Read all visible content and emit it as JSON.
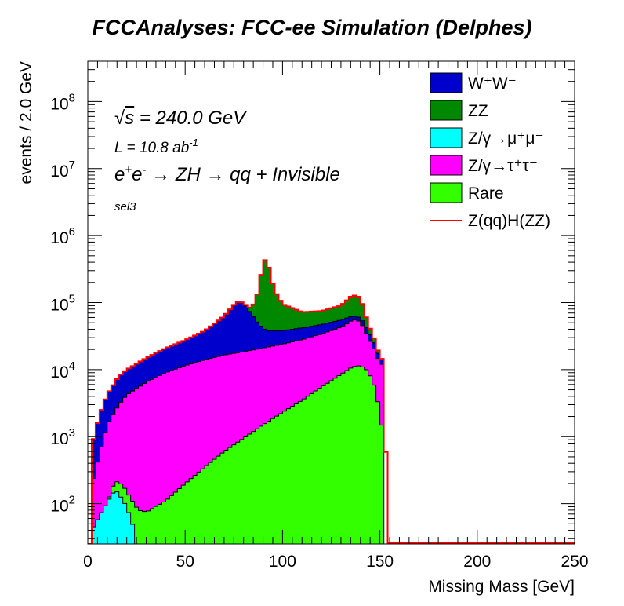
{
  "chart_data": {
    "type": "area",
    "title": "FCCAnalyses: FCC-ee Simulation (Delphes)",
    "xlabel": "Missing Mass [GeV]",
    "ylabel": "events / 2.0 GeV",
    "xlim": [
      0,
      250
    ],
    "ylim": [
      25,
      400000000
    ],
    "yscale": "log",
    "x_ticks": [
      "0",
      "50",
      "100",
      "150",
      "200",
      "250"
    ],
    "y_ticks": [
      {
        "base": "10",
        "exp": "2",
        "value": 100
      },
      {
        "base": "10",
        "exp": "3",
        "value": 1000
      },
      {
        "base": "10",
        "exp": "4",
        "value": 10000
      },
      {
        "base": "10",
        "exp": "5",
        "value": 100000
      },
      {
        "base": "10",
        "exp": "6",
        "value": 1000000
      },
      {
        "base": "10",
        "exp": "7",
        "value": 10000000
      },
      {
        "base": "10",
        "exp": "8",
        "value": 100000000
      }
    ],
    "annotations": {
      "sqrt_s": "240.0 GeV",
      "lumi_prefix": "L = 10.8 ab",
      "lumi_exp": "-1",
      "process": "qq + Invisible",
      "selection": "sel3"
    },
    "stack_order_bottom_to_top": [
      "Z/γ→μ⁺μ⁻",
      "Rare",
      "Z/γ→τ⁺τ⁻",
      "W⁺W⁻",
      "ZZ"
    ],
    "series": [
      {
        "name": "W⁺W⁻",
        "color": "#0000cc",
        "kind": "stack",
        "cumulative_top": [
          [
            2,
            700
          ],
          [
            6,
            2100
          ],
          [
            10,
            4300
          ],
          [
            16,
            8000
          ],
          [
            20,
            10000
          ],
          [
            30,
            15000
          ],
          [
            40,
            21000
          ],
          [
            50,
            27500
          ],
          [
            60,
            38000
          ],
          [
            70,
            63000
          ],
          [
            76,
            100000
          ],
          [
            78,
            105000
          ],
          [
            80,
            97000
          ],
          [
            84,
            67000
          ],
          [
            88,
            47000
          ],
          [
            92,
            38000
          ],
          [
            100,
            38000
          ],
          [
            110,
            42000
          ],
          [
            120,
            47000
          ],
          [
            130,
            55000
          ],
          [
            136,
            63000
          ],
          [
            140,
            60000
          ],
          [
            144,
            38000
          ],
          [
            148,
            22000
          ],
          [
            150,
            14000
          ],
          [
            152,
            14000
          ],
          [
            154,
            0
          ]
        ]
      },
      {
        "name": "ZZ",
        "color": "#008800",
        "kind": "stack",
        "cumulative_top": [
          [
            2,
            700
          ],
          [
            6,
            2100
          ],
          [
            10,
            4300
          ],
          [
            16,
            8000
          ],
          [
            20,
            10000
          ],
          [
            30,
            15000
          ],
          [
            40,
            21000
          ],
          [
            50,
            27500
          ],
          [
            60,
            38000
          ],
          [
            70,
            63000
          ],
          [
            76,
            100000
          ],
          [
            78,
            105000
          ],
          [
            80,
            97000
          ],
          [
            84,
            80000
          ],
          [
            86,
            110000
          ],
          [
            88,
            160000
          ],
          [
            90,
            420000
          ],
          [
            92,
            440000
          ],
          [
            94,
            250000
          ],
          [
            96,
            150000
          ],
          [
            100,
            95000
          ],
          [
            110,
            72000
          ],
          [
            120,
            75000
          ],
          [
            130,
            90000
          ],
          [
            136,
            130000
          ],
          [
            140,
            120000
          ],
          [
            144,
            48000
          ],
          [
            148,
            25000
          ],
          [
            150,
            15000
          ],
          [
            152,
            14000
          ],
          [
            154,
            0
          ]
        ]
      },
      {
        "name": "Z/γ→μ⁺μ⁻",
        "color": "#00ffff",
        "kind": "stack",
        "cumulative_top": [
          [
            2,
            40
          ],
          [
            6,
            65
          ],
          [
            10,
            105
          ],
          [
            14,
            160
          ],
          [
            16,
            140
          ],
          [
            20,
            90
          ],
          [
            24,
            40
          ],
          [
            26,
            0
          ]
        ]
      },
      {
        "name": "Z/γ→τ⁺τ⁻",
        "color": "#ff00ff",
        "kind": "stack",
        "cumulative_top": [
          [
            2,
            180
          ],
          [
            6,
            550
          ],
          [
            10,
            1500
          ],
          [
            16,
            3000
          ],
          [
            20,
            4200
          ],
          [
            30,
            6500
          ],
          [
            40,
            9000
          ],
          [
            50,
            11500
          ],
          [
            60,
            14000
          ],
          [
            70,
            16500
          ],
          [
            80,
            18500
          ],
          [
            90,
            21000
          ],
          [
            100,
            24000
          ],
          [
            110,
            28000
          ],
          [
            120,
            34000
          ],
          [
            130,
            43000
          ],
          [
            134,
            50000
          ],
          [
            136,
            56000
          ],
          [
            140,
            52000
          ],
          [
            144,
            30000
          ],
          [
            148,
            18000
          ],
          [
            150,
            12000
          ],
          [
            152,
            12000
          ],
          [
            154,
            0
          ]
        ]
      },
      {
        "name": "Rare",
        "color": "#33ff00",
        "kind": "stack",
        "cumulative_top": [
          [
            2,
            25
          ],
          [
            6,
            50
          ],
          [
            10,
            105
          ],
          [
            14,
            220
          ],
          [
            18,
            190
          ],
          [
            22,
            120
          ],
          [
            26,
            80
          ],
          [
            30,
            75
          ],
          [
            40,
            110
          ],
          [
            50,
            200
          ],
          [
            60,
            350
          ],
          [
            70,
            600
          ],
          [
            80,
            950
          ],
          [
            90,
            1500
          ],
          [
            100,
            2300
          ],
          [
            110,
            3500
          ],
          [
            120,
            5500
          ],
          [
            130,
            8500
          ],
          [
            136,
            11000
          ],
          [
            140,
            11500
          ],
          [
            144,
            9500
          ],
          [
            148,
            5000
          ],
          [
            150,
            2200
          ],
          [
            152,
            1000
          ],
          [
            154,
            0
          ]
        ]
      },
      {
        "name": "Z(qq)H(ZZ)",
        "color": "#ff0000",
        "kind": "line",
        "values": [
          [
            2,
            700
          ],
          [
            6,
            2100
          ],
          [
            10,
            4300
          ],
          [
            16,
            8000
          ],
          [
            20,
            10000
          ],
          [
            30,
            15000
          ],
          [
            40,
            21000
          ],
          [
            50,
            27500
          ],
          [
            60,
            38000
          ],
          [
            70,
            63000
          ],
          [
            76,
            100000
          ],
          [
            78,
            105000
          ],
          [
            80,
            97000
          ],
          [
            84,
            80000
          ],
          [
            86,
            110000
          ],
          [
            88,
            160000
          ],
          [
            90,
            420000
          ],
          [
            92,
            440000
          ],
          [
            94,
            250000
          ],
          [
            96,
            150000
          ],
          [
            100,
            95000
          ],
          [
            110,
            72000
          ],
          [
            120,
            75000
          ],
          [
            130,
            90000
          ],
          [
            136,
            130000
          ],
          [
            140,
            120000
          ],
          [
            144,
            48000
          ],
          [
            148,
            25000
          ],
          [
            150,
            15000
          ],
          [
            152,
            14000
          ],
          [
            154,
            25
          ],
          [
            250,
            25
          ]
        ]
      }
    ],
    "legend_position": "top-right",
    "grid": false
  }
}
